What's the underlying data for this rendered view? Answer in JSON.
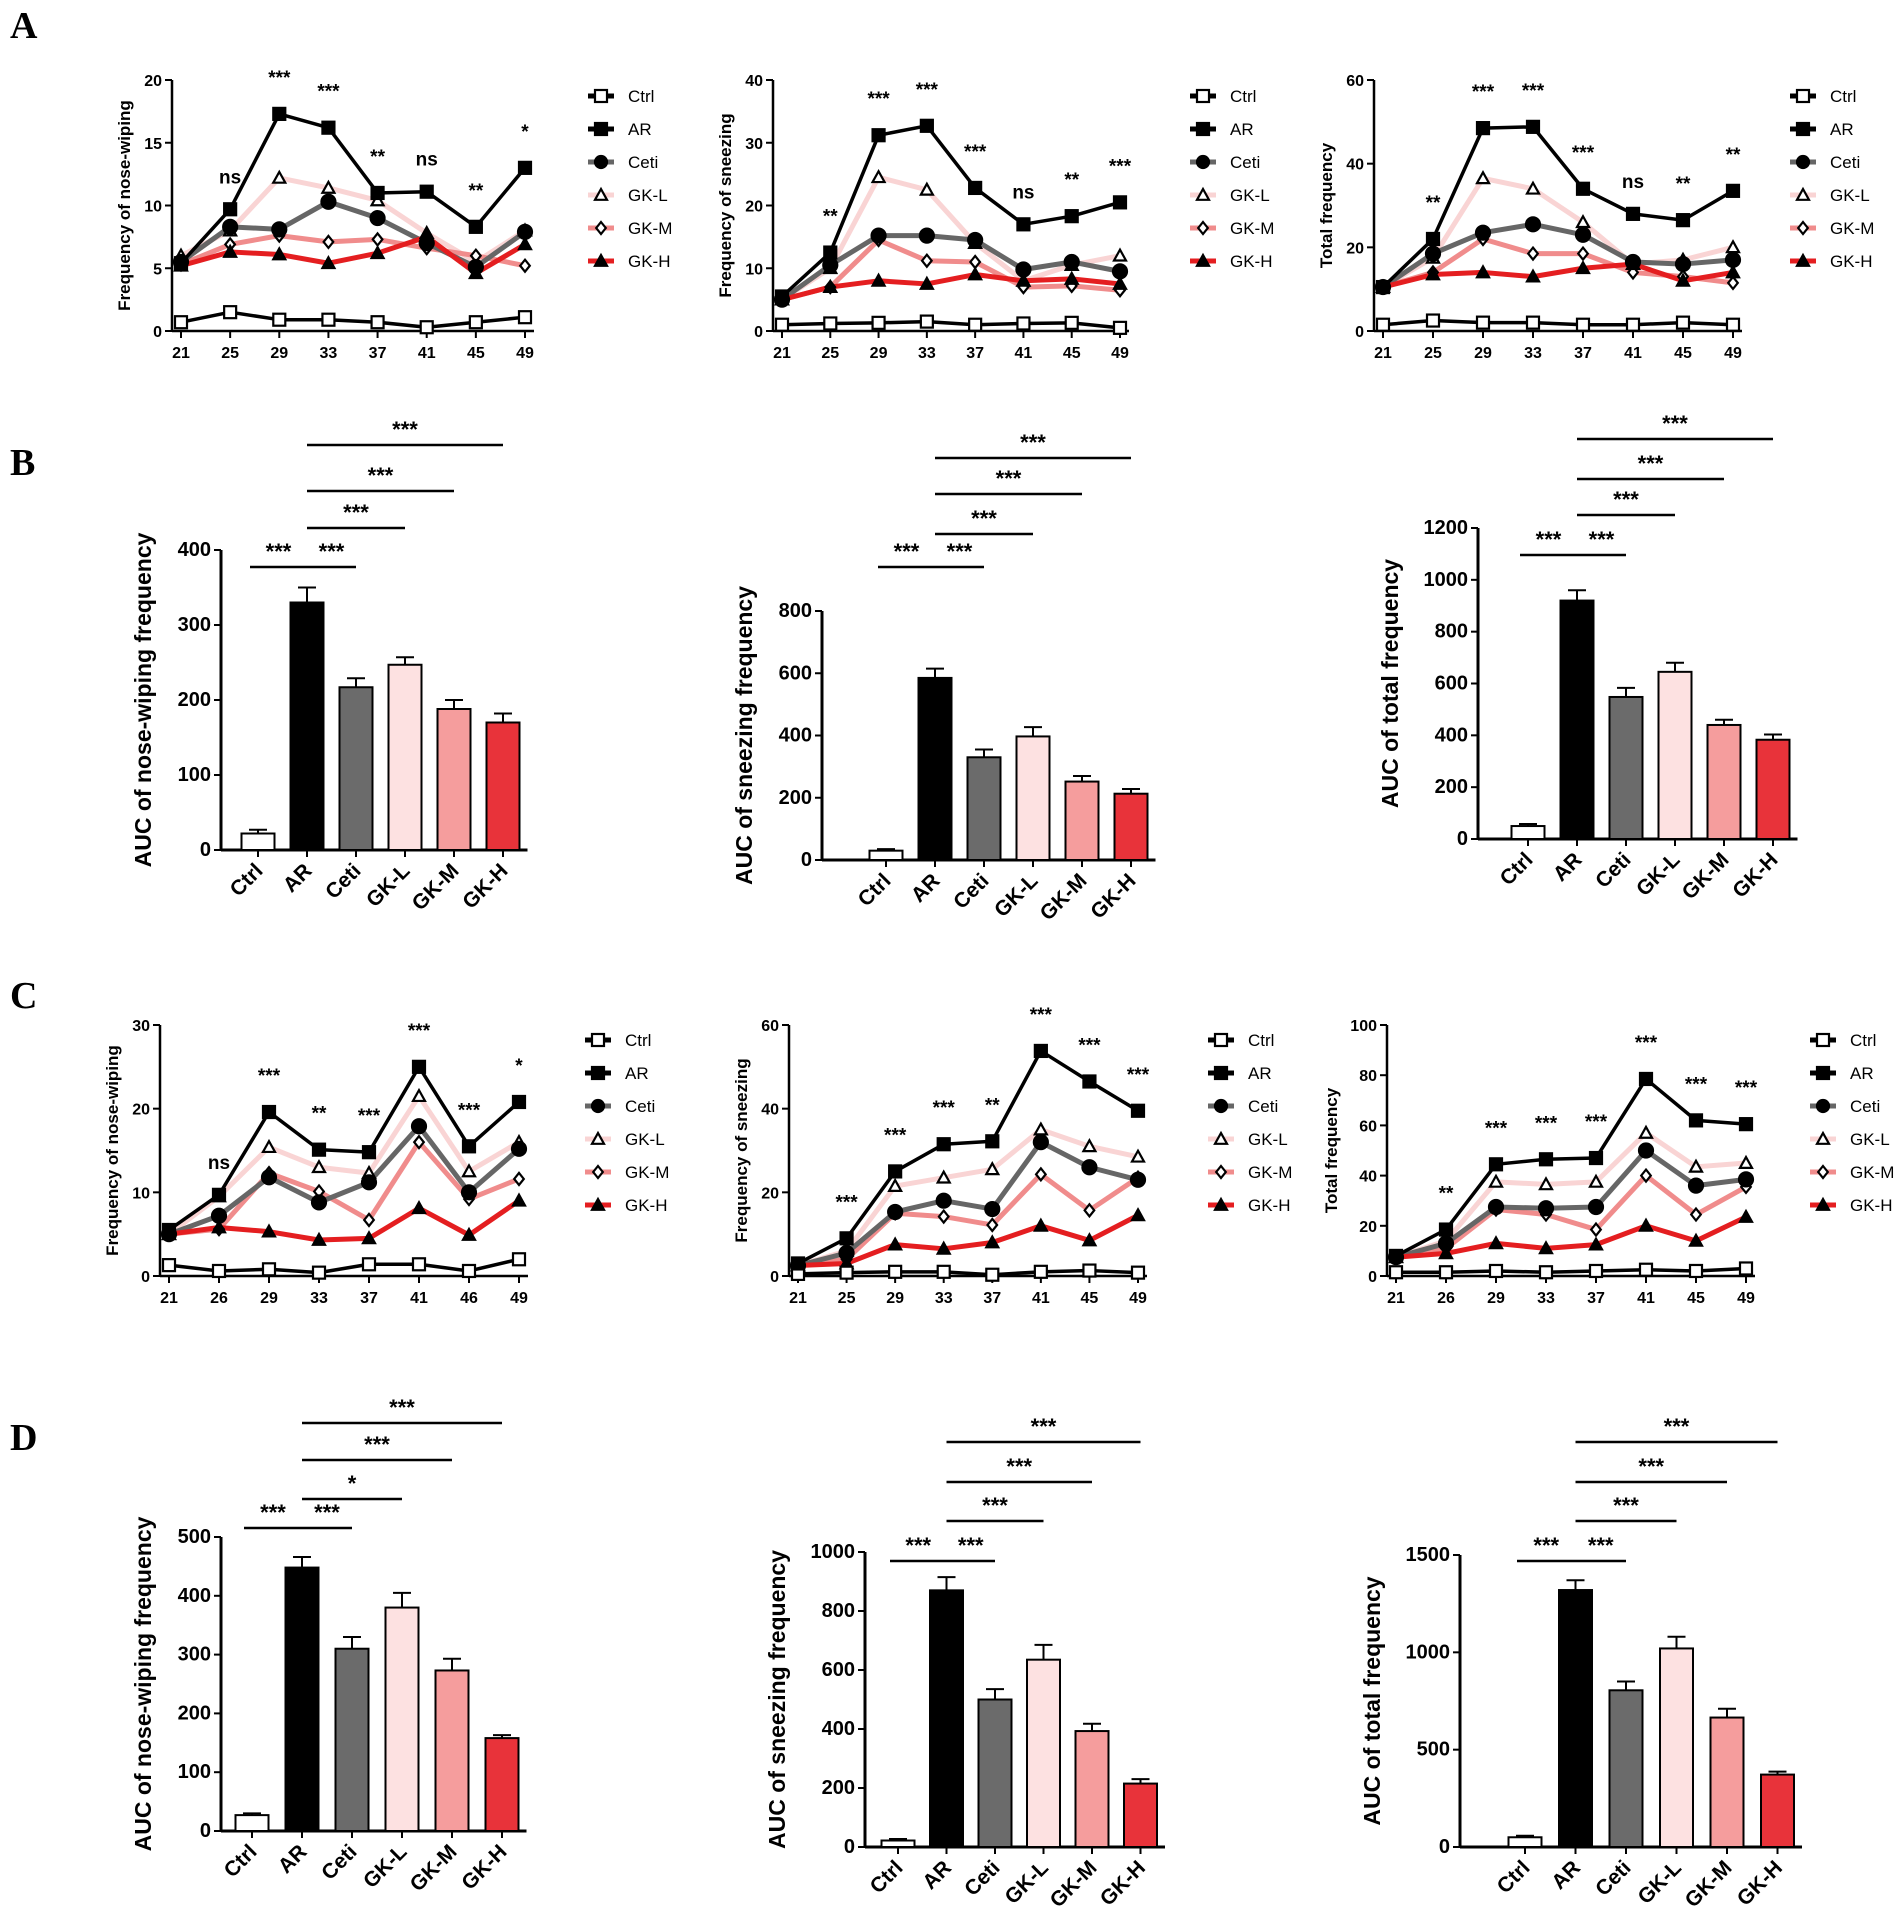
{
  "panels": [
    "A",
    "B",
    "C",
    "D"
  ],
  "colors": {
    "Ctrl": "#ffffff",
    "AR": "#000000",
    "Ceti": "#6b6b6b",
    "GK-L": "#fde1e1",
    "GK-M": "#f59d9d",
    "GK-H": "#e8333a"
  },
  "line_colors": {
    "Ctrl": "#000000",
    "AR": "#000000",
    "Ceti": "#666666",
    "GK-L": "#f9d4d4",
    "GK-M": "#f08c8c",
    "GK-H": "#e41e20"
  },
  "chart_data": [
    {
      "panel": "A",
      "type": "line",
      "ylabel": "Frequency of  nose-wiping",
      "ylim": [
        0,
        20
      ],
      "yticks": [
        0,
        5,
        10,
        15,
        20
      ],
      "x_labels": [
        "21",
        "25",
        "29",
        "33",
        "37",
        "41",
        "45",
        "49"
      ],
      "annotations": [
        "",
        "ns",
        "***",
        "***",
        "**",
        "ns",
        "**",
        "*"
      ],
      "series": [
        {
          "name": "Ctrl",
          "values": [
            0.7,
            1.5,
            0.9,
            0.9,
            0.7,
            0.3,
            0.7,
            1.1
          ]
        },
        {
          "name": "AR",
          "values": [
            5.4,
            9.7,
            17.3,
            16.2,
            11.0,
            11.1,
            8.3,
            13.0
          ]
        },
        {
          "name": "Ceti",
          "values": [
            5.5,
            8.3,
            8.1,
            10.3,
            9.0,
            7.0,
            5.1,
            7.9
          ]
        },
        {
          "name": "GK-L",
          "values": [
            6.0,
            8.0,
            12.2,
            11.4,
            10.4,
            7.8,
            5.5,
            8.0
          ]
        },
        {
          "name": "GK-M",
          "values": [
            5.3,
            6.9,
            7.6,
            7.1,
            7.3,
            6.6,
            6.0,
            5.2
          ]
        },
        {
          "name": "GK-H",
          "values": [
            5.2,
            6.3,
            6.1,
            5.4,
            6.2,
            7.5,
            4.6,
            6.9
          ]
        }
      ]
    },
    {
      "panel": "A",
      "type": "line",
      "ylabel": "Frequency of sneezing",
      "ylim": [
        0,
        40
      ],
      "yticks": [
        0,
        10,
        20,
        30,
        40
      ],
      "x_labels": [
        "21",
        "25",
        "29",
        "33",
        "37",
        "41",
        "45",
        "49"
      ],
      "annotations": [
        "",
        "**",
        "***",
        "***",
        "***",
        "ns",
        "**",
        "***"
      ],
      "series": [
        {
          "name": "Ctrl",
          "values": [
            1.0,
            1.2,
            1.3,
            1.5,
            1.0,
            1.2,
            1.3,
            0.5
          ]
        },
        {
          "name": "AR",
          "values": [
            5.5,
            12.5,
            31.2,
            32.7,
            22.8,
            17.0,
            18.3,
            20.5
          ]
        },
        {
          "name": "Ceti",
          "values": [
            5.0,
            10.5,
            15.2,
            15.2,
            14.5,
            9.8,
            11.0,
            9.5
          ]
        },
        {
          "name": "GK-L",
          "values": [
            5.0,
            10.0,
            24.5,
            22.5,
            14.0,
            8.0,
            10.5,
            12.0
          ]
        },
        {
          "name": "GK-M",
          "values": [
            5.0,
            7.0,
            14.5,
            11.2,
            11.0,
            7.0,
            7.2,
            6.5
          ]
        },
        {
          "name": "GK-H",
          "values": [
            5.0,
            7.0,
            8.0,
            7.5,
            9.0,
            8.0,
            8.3,
            7.5
          ]
        }
      ]
    },
    {
      "panel": "A",
      "type": "line",
      "ylabel": "Total frequency",
      "ylim": [
        0,
        60
      ],
      "yticks": [
        0,
        20,
        40,
        60
      ],
      "x_labels": [
        "21",
        "25",
        "29",
        "33",
        "37",
        "41",
        "45",
        "49"
      ],
      "annotations": [
        "",
        "**",
        "***",
        "***",
        "***",
        "ns",
        "**",
        "**"
      ],
      "series": [
        {
          "name": "Ctrl",
          "values": [
            1.5,
            2.5,
            2.0,
            2.0,
            1.5,
            1.5,
            2.0,
            1.5
          ]
        },
        {
          "name": "AR",
          "values": [
            10.5,
            22.0,
            48.5,
            48.8,
            34.0,
            28.0,
            26.5,
            33.5
          ]
        },
        {
          "name": "Ceti",
          "values": [
            10.5,
            18.5,
            23.5,
            25.5,
            23.0,
            16.5,
            16.0,
            17.0
          ]
        },
        {
          "name": "GK-L",
          "values": [
            10.5,
            17.5,
            36.5,
            34.0,
            26.0,
            16.0,
            17.0,
            20.0
          ]
        },
        {
          "name": "GK-M",
          "values": [
            10.5,
            14.0,
            22.0,
            18.5,
            18.5,
            14.0,
            13.0,
            11.5
          ]
        },
        {
          "name": "GK-H",
          "values": [
            10.5,
            13.5,
            14.0,
            13.0,
            15.0,
            16.0,
            12.0,
            14.0
          ]
        }
      ]
    },
    {
      "panel": "B",
      "type": "bar",
      "ylabel": "AUC of nose-wiping frequency",
      "ylim": [
        0,
        400
      ],
      "yticks": [
        0,
        100,
        200,
        300,
        400
      ],
      "categories": [
        "Ctrl",
        "AR",
        "Ceti",
        "GK-L",
        "GK-M",
        "GK-H"
      ],
      "values": [
        22,
        330,
        217,
        247,
        188,
        170
      ],
      "errors": [
        5,
        20,
        12,
        10,
        12,
        12
      ],
      "comparisons": [
        {
          "from": 0,
          "to": 1,
          "label": "***"
        },
        {
          "from": 1,
          "to": 2,
          "label": "***"
        },
        {
          "from": 1,
          "to": 3,
          "label": "***"
        },
        {
          "from": 1,
          "to": 4,
          "label": "***"
        },
        {
          "from": 1,
          "to": 5,
          "label": "***"
        }
      ]
    },
    {
      "panel": "B",
      "type": "bar",
      "ylabel": "AUC of sneezing frequency",
      "ylim": [
        0,
        800
      ],
      "yticks": [
        0,
        200,
        400,
        600,
        800
      ],
      "categories": [
        "Ctrl",
        "AR",
        "Ceti",
        "GK-L",
        "GK-M",
        "GK-H"
      ],
      "values": [
        30,
        585,
        330,
        397,
        252,
        213
      ],
      "errors": [
        5,
        30,
        25,
        30,
        18,
        15
      ],
      "comparisons": [
        {
          "from": 0,
          "to": 1,
          "label": "***"
        },
        {
          "from": 1,
          "to": 2,
          "label": "***"
        },
        {
          "from": 1,
          "to": 3,
          "label": "***"
        },
        {
          "from": 1,
          "to": 4,
          "label": "***"
        },
        {
          "from": 1,
          "to": 5,
          "label": "***"
        }
      ]
    },
    {
      "panel": "B",
      "type": "bar",
      "ylabel": "AUC of total frequency",
      "ylim": [
        0,
        1200
      ],
      "yticks": [
        0,
        200,
        400,
        600,
        800,
        1000,
        1200
      ],
      "categories": [
        "Ctrl",
        "AR",
        "Ceti",
        "GK-L",
        "GK-M",
        "GK-H"
      ],
      "values": [
        50,
        920,
        548,
        645,
        440,
        383
      ],
      "errors": [
        8,
        40,
        35,
        35,
        20,
        20
      ],
      "comparisons": [
        {
          "from": 0,
          "to": 1,
          "label": "***"
        },
        {
          "from": 1,
          "to": 2,
          "label": "***"
        },
        {
          "from": 1,
          "to": 3,
          "label": "***"
        },
        {
          "from": 1,
          "to": 4,
          "label": "***"
        },
        {
          "from": 1,
          "to": 5,
          "label": "***"
        }
      ]
    },
    {
      "panel": "C",
      "type": "line",
      "ylabel": "Frequency of nose-wiping",
      "ylim": [
        0,
        30
      ],
      "yticks": [
        0,
        10,
        20,
        30
      ],
      "x_labels": [
        "21",
        "26",
        "29",
        "33",
        "37",
        "41",
        "46",
        "49"
      ],
      "annotations": [
        "",
        "ns",
        "***",
        "**",
        "***",
        "***",
        "***",
        "*"
      ],
      "series": [
        {
          "name": "Ctrl",
          "values": [
            1.3,
            0.6,
            0.8,
            0.4,
            1.4,
            1.4,
            0.6,
            2.0
          ]
        },
        {
          "name": "AR",
          "values": [
            5.5,
            9.7,
            19.6,
            15.1,
            14.8,
            25.0,
            15.5,
            20.8
          ]
        },
        {
          "name": "Ceti",
          "values": [
            5.0,
            7.2,
            11.8,
            8.8,
            11.2,
            17.9,
            10.0,
            15.2
          ]
        },
        {
          "name": "GK-L",
          "values": [
            5.0,
            9.5,
            15.4,
            13.0,
            12.3,
            21.5,
            12.5,
            16.0
          ]
        },
        {
          "name": "GK-M",
          "values": [
            5.0,
            5.6,
            12.3,
            10.1,
            6.7,
            16.0,
            9.2,
            11.6
          ]
        },
        {
          "name": "GK-H",
          "values": [
            5.0,
            5.8,
            5.3,
            4.3,
            4.5,
            8.1,
            4.9,
            9.0
          ]
        }
      ]
    },
    {
      "panel": "C",
      "type": "line",
      "ylabel": "Frequency of sneezing",
      "ylim": [
        0,
        60
      ],
      "yticks": [
        0,
        20,
        40,
        60
      ],
      "x_labels": [
        "21",
        "25",
        "29",
        "33",
        "37",
        "41",
        "45",
        "49"
      ],
      "annotations": [
        "",
        "***",
        "***",
        "***",
        "**",
        "***",
        "***",
        "***"
      ],
      "series": [
        {
          "name": "Ctrl",
          "values": [
            0.5,
            0.8,
            1.0,
            1.0,
            0.3,
            1.0,
            1.3,
            0.8
          ]
        },
        {
          "name": "AR",
          "values": [
            3.0,
            9.0,
            25.0,
            31.5,
            32.2,
            53.8,
            46.5,
            39.5
          ]
        },
        {
          "name": "Ceti",
          "values": [
            2.5,
            5.5,
            15.3,
            18.0,
            16.0,
            32.0,
            26.0,
            23.0
          ]
        },
        {
          "name": "GK-L",
          "values": [
            2.5,
            6.0,
            21.5,
            23.5,
            25.5,
            35.0,
            31.0,
            28.5
          ]
        },
        {
          "name": "GK-M",
          "values": [
            2.5,
            4.0,
            15.0,
            14.2,
            12.2,
            24.3,
            15.7,
            23.5
          ]
        },
        {
          "name": "GK-H",
          "values": [
            2.5,
            3.0,
            7.5,
            6.5,
            8.0,
            12.0,
            8.5,
            14.5
          ]
        }
      ]
    },
    {
      "panel": "C",
      "type": "line",
      "ylabel": "Total frequency",
      "ylim": [
        0,
        100
      ],
      "yticks": [
        0,
        20,
        40,
        60,
        80,
        100
      ],
      "x_labels": [
        "21",
        "26",
        "29",
        "33",
        "37",
        "41",
        "45",
        "49"
      ],
      "annotations": [
        "",
        "**",
        "***",
        "***",
        "***",
        "***",
        "***",
        "***"
      ],
      "series": [
        {
          "name": "Ctrl",
          "values": [
            1.5,
            1.5,
            2.0,
            1.5,
            2.0,
            2.5,
            2.0,
            3.0
          ]
        },
        {
          "name": "AR",
          "values": [
            8.0,
            18.5,
            44.5,
            46.5,
            47.0,
            78.5,
            62.0,
            60.5
          ]
        },
        {
          "name": "Ceti",
          "values": [
            7.5,
            13.0,
            27.5,
            27.0,
            27.5,
            50.0,
            36.0,
            38.5
          ]
        },
        {
          "name": "GK-L",
          "values": [
            7.5,
            14.0,
            37.5,
            36.5,
            37.5,
            57.0,
            43.5,
            45.0
          ]
        },
        {
          "name": "GK-M",
          "values": [
            7.5,
            11.0,
            26.5,
            24.5,
            18.5,
            40.0,
            24.5,
            35.5
          ]
        },
        {
          "name": "GK-H",
          "values": [
            7.5,
            9.0,
            13.0,
            11.0,
            12.5,
            20.0,
            14.0,
            23.5
          ]
        }
      ]
    },
    {
      "panel": "D",
      "type": "bar",
      "ylabel": "AUC of nose-wiping frequency",
      "ylim": [
        0,
        500
      ],
      "yticks": [
        0,
        100,
        200,
        300,
        400,
        500
      ],
      "categories": [
        "Ctrl",
        "AR",
        "Ceti",
        "GK-L",
        "GK-M",
        "GK-H"
      ],
      "values": [
        27,
        448,
        310,
        380,
        273,
        158
      ],
      "errors": [
        3,
        18,
        20,
        25,
        20,
        5
      ],
      "comparisons": [
        {
          "from": 0,
          "to": 1,
          "label": "***"
        },
        {
          "from": 1,
          "to": 2,
          "label": "***"
        },
        {
          "from": 1,
          "to": 3,
          "label": "*"
        },
        {
          "from": 1,
          "to": 4,
          "label": "***"
        },
        {
          "from": 1,
          "to": 5,
          "label": "***"
        }
      ]
    },
    {
      "panel": "D",
      "type": "bar",
      "ylabel": "AUC of sneezing frequency",
      "ylim": [
        0,
        1000
      ],
      "yticks": [
        0,
        200,
        400,
        600,
        800,
        1000
      ],
      "categories": [
        "Ctrl",
        "AR",
        "Ceti",
        "GK-L",
        "GK-M",
        "GK-H"
      ],
      "values": [
        22,
        870,
        500,
        635,
        393,
        215
      ],
      "errors": [
        5,
        45,
        35,
        50,
        25,
        15
      ],
      "comparisons": [
        {
          "from": 0,
          "to": 1,
          "label": "***"
        },
        {
          "from": 1,
          "to": 2,
          "label": "***"
        },
        {
          "from": 1,
          "to": 3,
          "label": "***"
        },
        {
          "from": 1,
          "to": 4,
          "label": "***"
        },
        {
          "from": 1,
          "to": 5,
          "label": "***"
        }
      ]
    },
    {
      "panel": "D",
      "type": "bar",
      "ylabel": "AUC of total frequency",
      "ylim": [
        0,
        1500
      ],
      "yticks": [
        0,
        500,
        1000,
        1500
      ],
      "categories": [
        "Ctrl",
        "AR",
        "Ceti",
        "GK-L",
        "GK-M",
        "GK-H"
      ],
      "values": [
        50,
        1320,
        805,
        1020,
        665,
        372
      ],
      "errors": [
        8,
        50,
        45,
        60,
        45,
        15
      ],
      "comparisons": [
        {
          "from": 0,
          "to": 1,
          "label": "***"
        },
        {
          "from": 1,
          "to": 2,
          "label": "***"
        },
        {
          "from": 1,
          "to": 3,
          "label": "***"
        },
        {
          "from": 1,
          "to": 4,
          "label": "***"
        },
        {
          "from": 1,
          "to": 5,
          "label": "***"
        }
      ]
    }
  ]
}
